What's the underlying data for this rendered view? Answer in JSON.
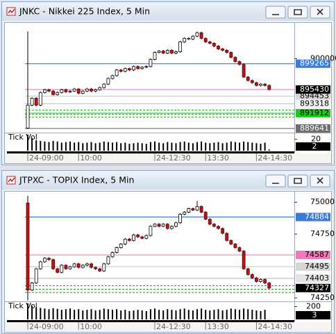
{
  "chart_data": [
    {
      "type": "candlestick",
      "title": "JNKC - Nikkei 225 Index, 5 Min",
      "categories": [
        "24-09:00",
        null,
        null,
        null,
        null,
        null,
        null,
        null,
        null,
        null,
        null,
        null,
        "10:00",
        null,
        null,
        null,
        null,
        null,
        null,
        null,
        null,
        null,
        null,
        null,
        null,
        null,
        null,
        null,
        null,
        null,
        "24-12:30",
        null,
        null,
        null,
        null,
        null,
        null,
        null,
        null,
        null,
        null,
        null,
        "13:30",
        null,
        null,
        null,
        null,
        null,
        null,
        null,
        null,
        null,
        null,
        null,
        "24-14:30",
        null,
        null,
        null
      ],
      "open": [
        889700,
        893100,
        894140,
        893100,
        894980,
        895400,
        895190,
        894670,
        894980,
        895400,
        895080,
        895190,
        895500,
        894870,
        895190,
        895500,
        895190,
        895400,
        895710,
        896230,
        897070,
        897490,
        898330,
        898120,
        898540,
        898330,
        898850,
        898540,
        898740,
        898850,
        899900,
        900940,
        901150,
        900840,
        901260,
        900840,
        901050,
        902510,
        903030,
        902930,
        903350,
        903870,
        903030,
        902510,
        902300,
        901880,
        901460,
        901260,
        900940,
        900210,
        899580,
        899160,
        897280,
        896760,
        896440,
        896030,
        896230,
        896030
      ],
      "high": [
        904080,
        894290,
        894290,
        895130,
        895550,
        895550,
        895340,
        895130,
        895550,
        895550,
        895340,
        895650,
        895650,
        895340,
        895650,
        895650,
        895550,
        895860,
        896380,
        897220,
        897640,
        898480,
        898480,
        898690,
        898690,
        899000,
        899000,
        898890,
        899000,
        900050,
        901090,
        901300,
        901300,
        901410,
        901410,
        901200,
        902660,
        903180,
        903180,
        903500,
        904020,
        904020,
        903180,
        902660,
        902450,
        902030,
        901610,
        901410,
        901090,
        900360,
        899730,
        899310,
        897430,
        896910,
        896590,
        896380,
        896380,
        896180
      ],
      "low": [
        889640,
        892950,
        892950,
        892950,
        894830,
        895040,
        894520,
        894520,
        894830,
        894930,
        894930,
        895040,
        894720,
        894720,
        895040,
        895040,
        895040,
        895250,
        895560,
        896080,
        896920,
        897340,
        897970,
        897970,
        898180,
        898180,
        898390,
        898390,
        898590,
        898700,
        899750,
        900790,
        900690,
        900690,
        900690,
        900690,
        900900,
        902360,
        902780,
        902780,
        903200,
        902880,
        902360,
        902150,
        901730,
        901310,
        901110,
        900790,
        900060,
        899430,
        899010,
        897130,
        896610,
        896290,
        895880,
        895880,
        895880,
        895280
      ],
      "close": [
        893100,
        894140,
        893100,
        894980,
        895400,
        895190,
        894670,
        894980,
        895400,
        895080,
        895190,
        895500,
        894870,
        895190,
        895500,
        895190,
        895400,
        895710,
        896230,
        897070,
        897490,
        898330,
        898120,
        898540,
        898330,
        898850,
        898540,
        898740,
        898850,
        899900,
        900940,
        901150,
        900840,
        901260,
        900840,
        901050,
        902510,
        903030,
        902930,
        903350,
        903870,
        903030,
        902510,
        902300,
        901880,
        901460,
        901260,
        900940,
        900210,
        899580,
        899160,
        897280,
        896760,
        896440,
        896030,
        896230,
        896030,
        895430
      ],
      "up_color": "#ffffff",
      "down_color": "#b01818",
      "last_line_color": "#e070b8",
      "ylim": [
        889120,
        905120
      ],
      "yticks": [
        900000
      ],
      "levels": [
        {
          "value": 899265,
          "color": "#2468c8",
          "label_color": "#3a7bd5",
          "text_color": "#ffffff"
        },
        {
          "value": 894453,
          "color": "#c8c8c8",
          "label_color": "#d6d6d6",
          "text_color": "#000000"
        },
        {
          "value": 893318,
          "color": "#b8b8b8",
          "label_color": "#f2f2f2",
          "text_color": "#000000"
        },
        {
          "value": 891912,
          "color": "#22b022",
          "label_color": "#1ec81e",
          "text_color": "#000000"
        },
        {
          "value": 889641,
          "color": "#555555",
          "label_color": "#6e6e6e",
          "text_color": "#ffffff"
        }
      ],
      "dashed_levels": [
        892360,
        891740,
        891320
      ],
      "volume": {
        "label": "Tick Vol",
        "ylim": [
          0,
          29
        ],
        "yticks": [
          20
        ],
        "values": [
          28,
          22,
          18,
          17,
          16,
          15,
          17,
          16,
          14,
          15,
          16,
          14,
          15,
          13,
          14,
          15,
          13,
          14,
          16,
          15,
          14,
          15,
          13,
          14,
          12,
          13,
          14,
          13,
          12,
          15,
          16,
          14,
          13,
          15,
          14,
          13,
          15,
          16,
          14,
          13,
          15,
          16,
          14,
          13,
          14,
          15,
          13,
          14,
          16,
          15,
          14,
          16,
          15,
          14,
          13,
          12,
          14,
          2
        ]
      }
    },
    {
      "type": "candlestick",
      "title": "JTPXC - TOPIX Index, 5 Min",
      "categories": [
        "24-09:00",
        null,
        null,
        null,
        null,
        null,
        null,
        null,
        null,
        null,
        null,
        null,
        "10:00",
        null,
        null,
        null,
        null,
        null,
        null,
        null,
        null,
        null,
        null,
        null,
        null,
        null,
        null,
        null,
        null,
        null,
        "24-12:30",
        null,
        null,
        null,
        null,
        null,
        null,
        null,
        null,
        null,
        null,
        null,
        "13:30",
        null,
        null,
        null,
        null,
        null,
        null,
        null,
        null,
        null,
        null,
        null,
        "24-14:30",
        null,
        null,
        null
      ],
      "open": [
        74994,
        74311,
        74367,
        74478,
        74533,
        74561,
        74550,
        74478,
        74450,
        74506,
        74478,
        74494,
        74517,
        74489,
        74506,
        74517,
        74489,
        74478,
        74461,
        74517,
        74572,
        74606,
        74644,
        74672,
        74711,
        74700,
        74744,
        74728,
        74717,
        74739,
        74811,
        74828,
        74811,
        74828,
        74794,
        74811,
        74839,
        74906,
        74922,
        74950,
        74939,
        74967,
        74922,
        74867,
        74828,
        74811,
        74794,
        74756,
        74700,
        74672,
        74644,
        74617,
        74478,
        74433,
        74406,
        74378,
        74394,
        74367
      ],
      "high": [
        75050,
        74375,
        74486,
        74541,
        74569,
        74569,
        74558,
        74486,
        74514,
        74514,
        74502,
        74525,
        74525,
        74514,
        74525,
        74525,
        74497,
        74486,
        74525,
        74580,
        74614,
        74652,
        74680,
        74719,
        74719,
        74752,
        74752,
        74736,
        74747,
        74819,
        74836,
        74836,
        74836,
        74836,
        74819,
        74847,
        74914,
        74930,
        74958,
        74958,
        75010,
        74975,
        74930,
        74875,
        74836,
        74819,
        74802,
        74764,
        74708,
        74680,
        74652,
        74625,
        74486,
        74441,
        74414,
        74402,
        74402,
        74375
      ],
      "low": [
        74230,
        74303,
        74359,
        74470,
        74525,
        74542,
        74470,
        74442,
        74442,
        74470,
        74470,
        74486,
        74481,
        74481,
        74498,
        74481,
        74470,
        74453,
        74453,
        74509,
        74564,
        74598,
        74636,
        74664,
        74692,
        74692,
        74720,
        74709,
        74709,
        74731,
        74803,
        74803,
        74803,
        74786,
        74786,
        74803,
        74831,
        74898,
        74914,
        74931,
        74931,
        74914,
        74859,
        74820,
        74803,
        74786,
        74748,
        74692,
        74664,
        74636,
        74609,
        74470,
        74425,
        74398,
        74370,
        74370,
        74359,
        74319
      ],
      "close": [
        74311,
        74367,
        74478,
        74533,
        74561,
        74550,
        74478,
        74450,
        74506,
        74478,
        74494,
        74517,
        74489,
        74506,
        74517,
        74489,
        74478,
        74461,
        74517,
        74572,
        74606,
        74644,
        74672,
        74711,
        74700,
        74744,
        74728,
        74717,
        74739,
        74811,
        74828,
        74811,
        74828,
        74794,
        74811,
        74839,
        74906,
        74922,
        74950,
        74939,
        74967,
        74922,
        74867,
        74828,
        74811,
        74794,
        74756,
        74700,
        74672,
        74644,
        74617,
        74478,
        74433,
        74406,
        74378,
        74394,
        74367,
        74327
      ],
      "up_color": "#ffffff",
      "down_color": "#b01818",
      "ylim": [
        74228,
        75072
      ],
      "yticks": [
        75000,
        74750,
        74250
      ],
      "levels": [
        {
          "value": 74884,
          "color": "#2468c8",
          "label_color": "#3a7bd5",
          "text_color": "#ffffff"
        },
        {
          "value": 74587,
          "color": "#e070b8",
          "label_color": "#f07ab8",
          "text_color": "#000000"
        },
        {
          "value": 74495,
          "color": "#c0c0c0",
          "label_color": "#d6d6d6",
          "text_color": "#000000"
        },
        {
          "value": 74403,
          "color": "#b0b0b0",
          "label_color": "#e4e4e4",
          "text_color": "#000000"
        }
      ],
      "dashed_levels": [
        74345,
        74318,
        74292
      ],
      "volume": {
        "label": "Tick Vol",
        "ylim": [
          0,
          260
        ],
        "yticks": [
          200
        ],
        "values": [
          250,
          210,
          190,
          180,
          170,
          160,
          175,
          165,
          150,
          160,
          170,
          150,
          160,
          140,
          150,
          160,
          140,
          150,
          170,
          160,
          150,
          160,
          140,
          150,
          130,
          140,
          150,
          140,
          130,
          160,
          170,
          150,
          140,
          160,
          150,
          140,
          160,
          170,
          150,
          140,
          160,
          170,
          150,
          140,
          150,
          160,
          140,
          150,
          170,
          160,
          150,
          170,
          160,
          150,
          140,
          130,
          150,
          3
        ]
      }
    }
  ]
}
